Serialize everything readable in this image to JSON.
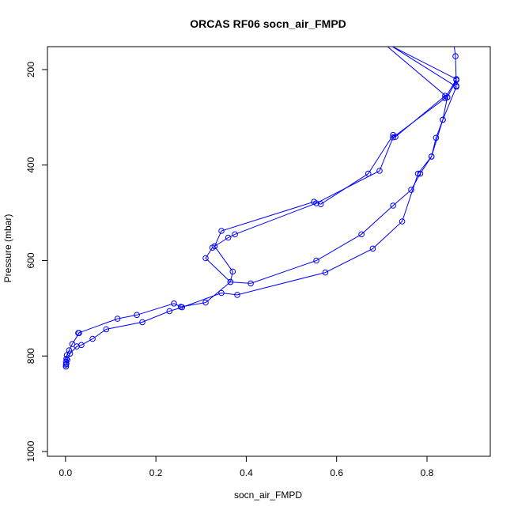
{
  "chart_data": {
    "type": "line",
    "title": "ORCAS RF06 socn_air_FMPD",
    "xlabel": "socn_air_FMPD",
    "ylabel": "Pressure (mbar)",
    "xlim": [
      -0.04,
      0.94
    ],
    "ylim": [
      1010,
      152
    ],
    "y_reversed": true,
    "x_ticks": [
      "0.0",
      "0.2",
      "0.4",
      "0.6",
      "0.8"
    ],
    "y_ticks": [
      "200",
      "400",
      "600",
      "800",
      "1000"
    ],
    "grid": false,
    "series": [
      {
        "color": "#0000ff",
        "marker": "open-circle",
        "points": [
          [
            0.001,
            822
          ],
          [
            0.001,
            818
          ],
          [
            0.001,
            812
          ],
          [
            0.002,
            806
          ],
          [
            0.003,
            798
          ],
          [
            0.008,
            788
          ],
          [
            0.015,
            775
          ],
          [
            0.03,
            752
          ],
          [
            0.028,
            752
          ],
          [
            0.115,
            722
          ],
          [
            0.158,
            714
          ],
          [
            0.24,
            690
          ],
          [
            0.255,
            697
          ],
          [
            0.31,
            688
          ],
          [
            0.365,
            645
          ],
          [
            0.37,
            623
          ],
          [
            0.33,
            570
          ],
          [
            0.345,
            538
          ],
          [
            0.55,
            477
          ],
          [
            0.565,
            482
          ],
          [
            0.67,
            418
          ],
          [
            0.725,
            337
          ],
          [
            0.73,
            341
          ],
          [
            0.84,
            255
          ],
          [
            0.845,
            258
          ],
          [
            0.865,
            222
          ],
          [
            0.865,
            234
          ],
          [
            0.863,
            172
          ],
          [
            0.86,
            150
          ]
        ]
      },
      {
        "color": "#0000ff",
        "marker": "open-circle",
        "points": [
          [
            0.71,
            150
          ],
          [
            0.845,
            258
          ],
          [
            0.835,
            305
          ],
          [
            0.82,
            343
          ],
          [
            0.81,
            382
          ],
          [
            0.785,
            418
          ],
          [
            0.765,
            452
          ],
          [
            0.725,
            485
          ],
          [
            0.655,
            545
          ],
          [
            0.555,
            600
          ],
          [
            0.41,
            648
          ],
          [
            0.365,
            645
          ],
          [
            0.31,
            595
          ],
          [
            0.325,
            573
          ],
          [
            0.36,
            552
          ],
          [
            0.375,
            545
          ],
          [
            0.555,
            480
          ],
          [
            0.695,
            412
          ],
          [
            0.725,
            342
          ],
          [
            0.84,
            260
          ],
          [
            0.865,
            220
          ],
          [
            0.72,
            150
          ]
        ]
      },
      {
        "color": "#0000ff",
        "marker": "open-circle",
        "points": [
          [
            0.72,
            150
          ],
          [
            0.865,
            236
          ],
          [
            0.835,
            305
          ],
          [
            0.81,
            382
          ],
          [
            0.78,
            418
          ],
          [
            0.745,
            518
          ],
          [
            0.68,
            575
          ],
          [
            0.575,
            625
          ],
          [
            0.38,
            672
          ],
          [
            0.345,
            668
          ],
          [
            0.258,
            698
          ],
          [
            0.23,
            706
          ],
          [
            0.17,
            729
          ],
          [
            0.09,
            744
          ],
          [
            0.06,
            764
          ],
          [
            0.035,
            777
          ],
          [
            0.025,
            780
          ],
          [
            0.01,
            795
          ],
          [
            0.004,
            808
          ],
          [
            0.002,
            816
          ],
          [
            0.001,
            822
          ]
        ]
      }
    ]
  }
}
